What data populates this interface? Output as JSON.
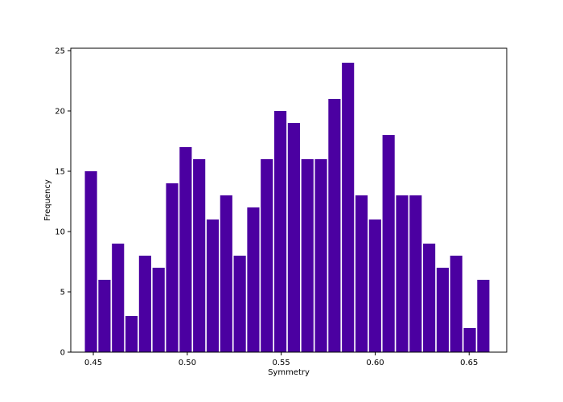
{
  "chart_data": {
    "type": "bar",
    "title": "",
    "xlabel": "Symmetry",
    "ylabel": "Frequency",
    "xlim": [
      0.438,
      0.67
    ],
    "ylim": [
      0,
      25.2
    ],
    "bar_color": "#4b00a1",
    "bin_width": 0.0072,
    "bar_width_fraction": 0.9,
    "bins_start": [
      0.4455,
      0.4527,
      0.4599,
      0.4671,
      0.4743,
      0.4815,
      0.4887,
      0.4959,
      0.5031,
      0.5103,
      0.5175,
      0.5247,
      0.5319,
      0.5391,
      0.5463,
      0.5535,
      0.5607,
      0.5679,
      0.5751,
      0.5823,
      0.5895,
      0.5967,
      0.6039,
      0.6111,
      0.6183,
      0.6255,
      0.6327,
      0.6399,
      0.6471,
      0.6543
    ],
    "values": [
      15,
      6,
      9,
      3,
      8,
      7,
      14,
      17,
      16,
      11,
      13,
      8,
      12,
      16,
      20,
      19,
      16,
      16,
      21,
      24,
      13,
      11,
      18,
      13,
      13,
      9,
      7,
      8,
      2,
      6
    ],
    "x_ticks": [
      0.45,
      0.5,
      0.55,
      0.6,
      0.65
    ],
    "x_tick_labels": [
      "0.45",
      "0.50",
      "0.55",
      "0.60",
      "0.65"
    ],
    "y_ticks": [
      0,
      5,
      10,
      15,
      20,
      25
    ],
    "y_tick_labels": [
      "0",
      "5",
      "10",
      "15",
      "20",
      "25"
    ],
    "grid": false,
    "legend": "none"
  }
}
